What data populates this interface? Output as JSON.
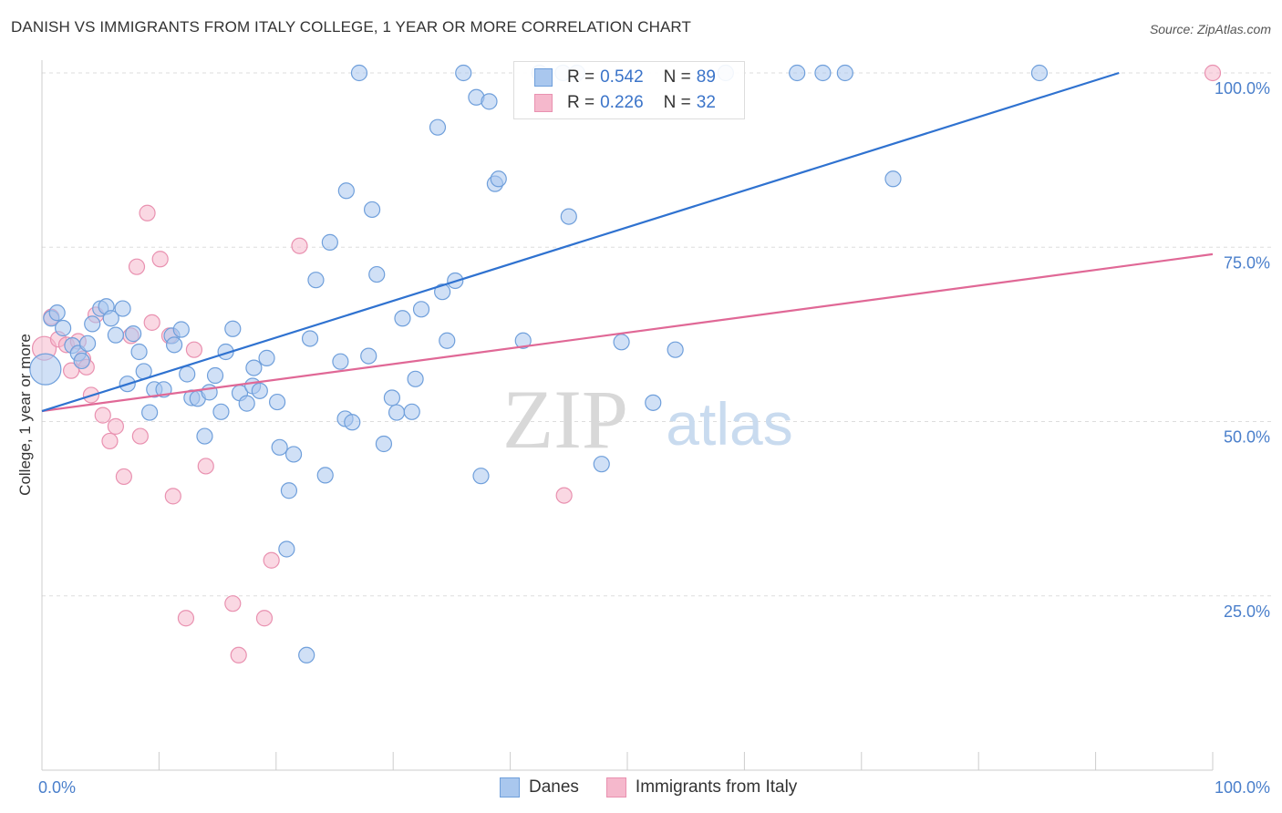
{
  "title": "DANISH VS IMMIGRANTS FROM ITALY COLLEGE, 1 YEAR OR MORE CORRELATION CHART",
  "source": "Source: ZipAtlas.com",
  "watermark": {
    "zip": "ZIP",
    "atlas": "atlas"
  },
  "legend": {
    "rows": [
      {
        "r_label": "R =",
        "r_value": "0.542",
        "n_label": "N =",
        "n_value": "89"
      },
      {
        "r_label": "R =",
        "r_value": "0.226",
        "n_label": "N =",
        "n_value": "32"
      }
    ]
  },
  "colors": {
    "danes_fill": "#a9c7ee",
    "danes_stroke": "#6f9fdb",
    "danes_line": "#2f72d0",
    "italy_fill": "#f5b8cc",
    "italy_stroke": "#e991b0",
    "italy_line": "#e06896",
    "axis_text": "#4a7fcb",
    "grid": "#dddddd"
  },
  "chart_data": {
    "type": "scatter",
    "title": "DANISH VS IMMIGRANTS FROM ITALY COLLEGE, 1 YEAR OR MORE CORRELATION CHART",
    "xlabel": "",
    "ylabel": "College, 1 year or more",
    "xlim": [
      0,
      100
    ],
    "ylim": [
      0,
      100
    ],
    "x_tick_labels": [
      "0.0%",
      "100.0%"
    ],
    "y_tick_labels": [
      "25.0%",
      "50.0%",
      "75.0%",
      "100.0%"
    ],
    "y_ticks": [
      25,
      50,
      75,
      100
    ],
    "grid": true,
    "legend_position": "top-center",
    "series": [
      {
        "name": "Danes",
        "trend": {
          "x": [
            0,
            92
          ],
          "y": [
            51.5,
            100
          ]
        },
        "points": [
          [
            0.3,
            57.5,
            3
          ],
          [
            0.8,
            64.8,
            1
          ],
          [
            1.3,
            65.6,
            1
          ],
          [
            1.8,
            63.4,
            1
          ],
          [
            2.6,
            60.9,
            1
          ],
          [
            3.1,
            59.8,
            1
          ],
          [
            3.4,
            58.7,
            1
          ],
          [
            3.9,
            61.2,
            1
          ],
          [
            4.3,
            64.0,
            1
          ],
          [
            5.0,
            66.2,
            1
          ],
          [
            5.5,
            66.5,
            1
          ],
          [
            5.9,
            64.8,
            1
          ],
          [
            6.3,
            62.4,
            1
          ],
          [
            6.9,
            66.2,
            1
          ],
          [
            7.3,
            55.4,
            1
          ],
          [
            7.8,
            62.6,
            1
          ],
          [
            8.3,
            60.0,
            1
          ],
          [
            8.7,
            57.2,
            1
          ],
          [
            9.2,
            51.3,
            1
          ],
          [
            9.6,
            54.6,
            1
          ],
          [
            10.4,
            54.6,
            1
          ],
          [
            11.1,
            62.3,
            1
          ],
          [
            11.3,
            61.0,
            1
          ],
          [
            11.9,
            63.2,
            1
          ],
          [
            12.4,
            56.8,
            1
          ],
          [
            12.8,
            53.4,
            1
          ],
          [
            13.3,
            53.3,
            1
          ],
          [
            13.9,
            47.9,
            1
          ],
          [
            14.3,
            54.2,
            1
          ],
          [
            14.8,
            56.6,
            1
          ],
          [
            15.3,
            51.4,
            1
          ],
          [
            15.7,
            60.0,
            1
          ],
          [
            16.3,
            63.3,
            1
          ],
          [
            16.9,
            54.1,
            1
          ],
          [
            17.5,
            52.6,
            1
          ],
          [
            18.0,
            55.1,
            1
          ],
          [
            18.1,
            57.7,
            1
          ],
          [
            18.6,
            54.4,
            1
          ],
          [
            19.2,
            59.1,
            1
          ],
          [
            20.1,
            52.8,
            1
          ],
          [
            20.3,
            46.3,
            1
          ],
          [
            21.1,
            40.1,
            1
          ],
          [
            21.5,
            45.3,
            1
          ],
          [
            20.9,
            31.7,
            1
          ],
          [
            22.6,
            16.5,
            1
          ],
          [
            22.9,
            61.9,
            1
          ],
          [
            23.4,
            70.3,
            1
          ],
          [
            24.2,
            42.3,
            1
          ],
          [
            24.6,
            75.7,
            1
          ],
          [
            25.5,
            58.6,
            1
          ],
          [
            25.9,
            50.4,
            1
          ],
          [
            26.0,
            83.1,
            1
          ],
          [
            26.5,
            49.9,
            1
          ],
          [
            27.1,
            100.0,
            1
          ],
          [
            27.9,
            59.4,
            1
          ],
          [
            28.2,
            80.4,
            1
          ],
          [
            28.6,
            71.1,
            1
          ],
          [
            29.2,
            46.8,
            1
          ],
          [
            29.9,
            53.4,
            1
          ],
          [
            30.3,
            51.3,
            1
          ],
          [
            30.8,
            64.8,
            1
          ],
          [
            31.6,
            51.4,
            1
          ],
          [
            31.9,
            56.1,
            1
          ],
          [
            32.4,
            66.1,
            1
          ],
          [
            33.8,
            92.2,
            1
          ],
          [
            34.2,
            68.6,
            1
          ],
          [
            34.6,
            61.6,
            1
          ],
          [
            35.3,
            70.2,
            1
          ],
          [
            37.1,
            96.5,
            1
          ],
          [
            37.5,
            42.2,
            1
          ],
          [
            38.2,
            95.9,
            1
          ],
          [
            38.7,
            84.1,
            1
          ],
          [
            39.0,
            84.8,
            1
          ],
          [
            41.1,
            61.6,
            1
          ],
          [
            42.5,
            100.0,
            1
          ],
          [
            44.5,
            100.0,
            1
          ],
          [
            45.0,
            79.4,
            1
          ],
          [
            47.8,
            43.9,
            1
          ],
          [
            49.5,
            61.4,
            1
          ],
          [
            52.2,
            52.7,
            1
          ],
          [
            54.1,
            60.3,
            1
          ],
          [
            58.4,
            100.0,
            1
          ],
          [
            64.5,
            100.0,
            1
          ],
          [
            66.7,
            100.0,
            1
          ],
          [
            68.6,
            100.0,
            1
          ],
          [
            72.7,
            84.8,
            1
          ],
          [
            85.2,
            100.0,
            1
          ],
          [
            45.7,
            100.0,
            1
          ],
          [
            36.0,
            100.0,
            1
          ]
        ]
      },
      {
        "name": "Immigrants from Italy",
        "trend": {
          "x": [
            0,
            100
          ],
          "y": [
            51.5,
            74.0
          ]
        },
        "points": [
          [
            0.2,
            60.5,
            2
          ],
          [
            0.8,
            65.0,
            1
          ],
          [
            1.4,
            61.8,
            1
          ],
          [
            2.1,
            61.0,
            1
          ],
          [
            2.5,
            57.3,
            1
          ],
          [
            3.1,
            61.5,
            1
          ],
          [
            3.5,
            59.0,
            1
          ],
          [
            3.8,
            57.8,
            1
          ],
          [
            4.2,
            53.8,
            1
          ],
          [
            4.6,
            65.3,
            1
          ],
          [
            5.2,
            50.9,
            1
          ],
          [
            5.8,
            47.2,
            1
          ],
          [
            6.3,
            49.3,
            1
          ],
          [
            7.0,
            42.1,
            1
          ],
          [
            7.6,
            62.3,
            1
          ],
          [
            8.1,
            72.2,
            1
          ],
          [
            8.4,
            47.9,
            1
          ],
          [
            9.0,
            79.9,
            1
          ],
          [
            9.4,
            64.2,
            1
          ],
          [
            10.1,
            73.3,
            1
          ],
          [
            10.9,
            62.3,
            1
          ],
          [
            11.2,
            39.3,
            1
          ],
          [
            12.3,
            21.8,
            1
          ],
          [
            13.0,
            60.3,
            1
          ],
          [
            14.0,
            43.6,
            1
          ],
          [
            16.3,
            23.9,
            1
          ],
          [
            16.8,
            16.5,
            1
          ],
          [
            19.0,
            21.8,
            1
          ],
          [
            19.6,
            30.1,
            1
          ],
          [
            22.0,
            75.2,
            1
          ],
          [
            44.6,
            39.4,
            1
          ],
          [
            100.0,
            100.0,
            1
          ]
        ]
      }
    ]
  },
  "bottom_legend": [
    "Danes",
    "Immigrants from Italy"
  ]
}
